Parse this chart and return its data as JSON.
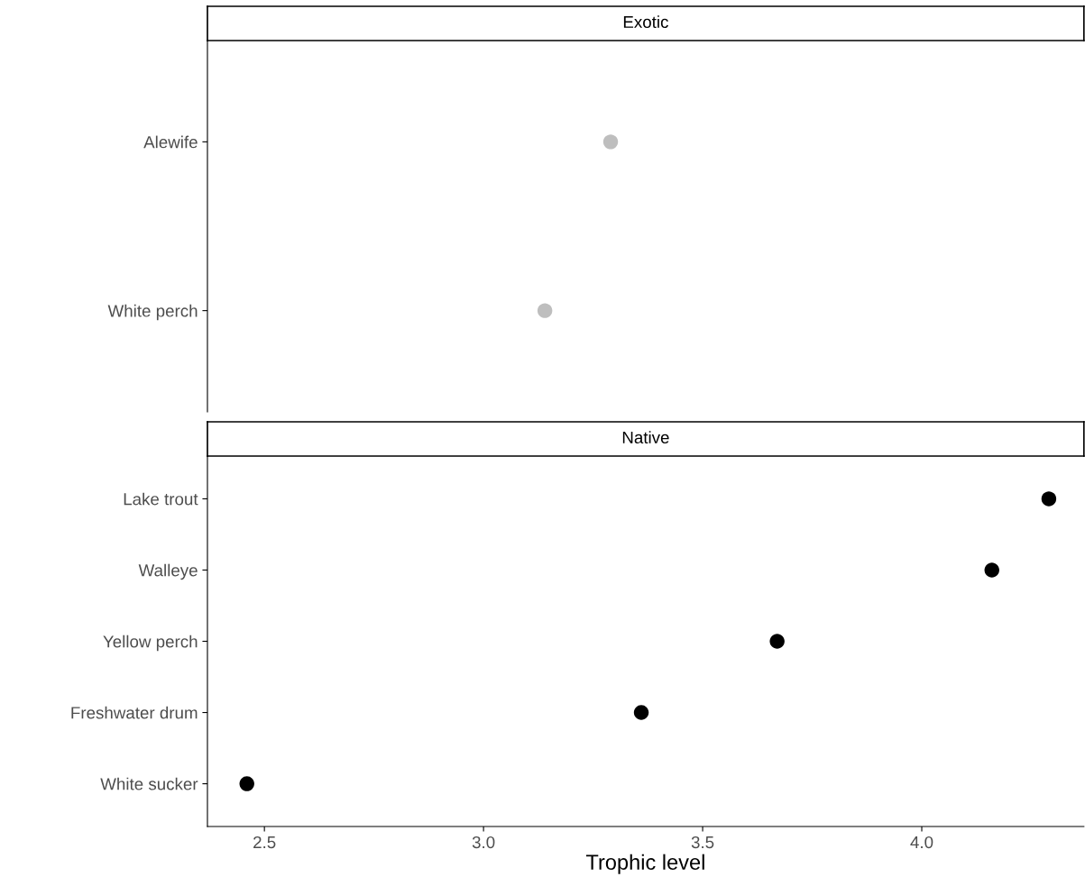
{
  "chart_data": [
    {
      "type": "scatter",
      "title": "Exotic",
      "orientation": "horizontal",
      "categories": [
        "Alewife",
        "White perch"
      ],
      "values": [
        3.29,
        3.14
      ],
      "color": "#bebebe",
      "marker": "circle",
      "xlim": [
        2.37,
        4.37
      ],
      "xticks": [
        2.5,
        3.0,
        3.5,
        4.0
      ],
      "tick_labels": "y",
      "grid": false,
      "legend": false
    },
    {
      "type": "scatter",
      "title": "Native",
      "orientation": "horizontal",
      "categories": [
        "Lake trout",
        "Walleye",
        "Yellow perch",
        "Freshwater drum",
        "White sucker"
      ],
      "values": [
        4.29,
        4.16,
        3.67,
        3.36,
        2.46
      ],
      "color": "#000000",
      "marker": "circle",
      "xlim": [
        2.37,
        4.37
      ],
      "xticks": [
        2.5,
        {
          "value": 3.0,
          "label": "3.0"
        },
        3.5,
        {
          "value": 4.0,
          "label": "4.0"
        }
      ],
      "xlabel": "Trophic level",
      "grid": false,
      "legend": false
    }
  ]
}
